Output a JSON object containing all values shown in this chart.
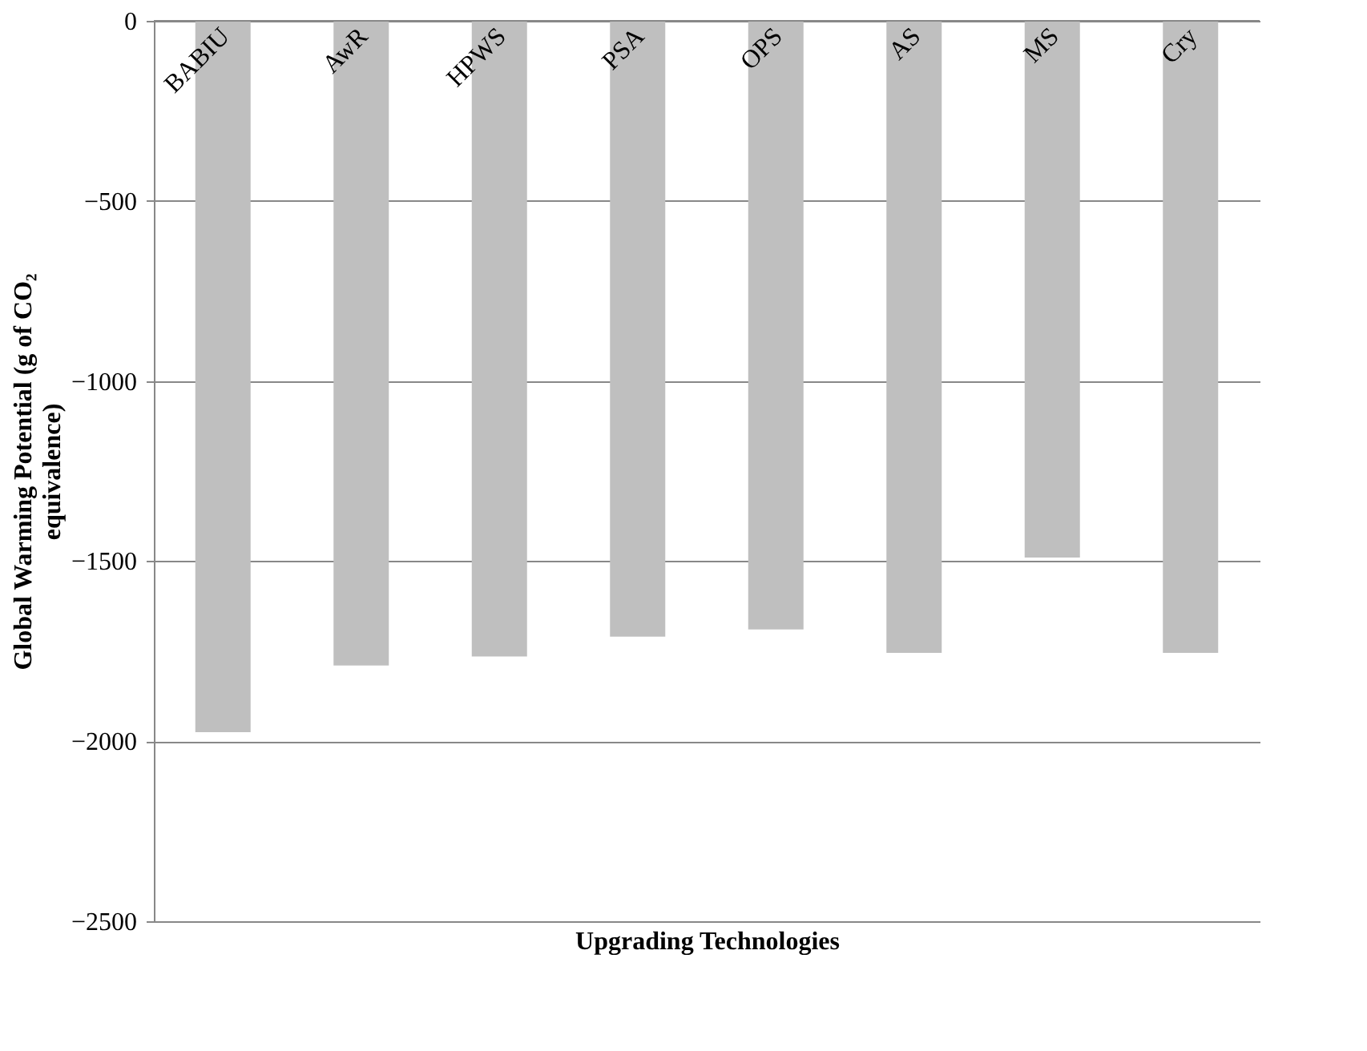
{
  "chart_data": {
    "type": "bar",
    "xlabel": "Upgrading Technologies",
    "ylabel": "Global Warming Potential (g of CO₂ equivalence)",
    "categories": [
      "BABIU",
      "AwR",
      "HPWS",
      "PSA",
      "OPS",
      "AS",
      "MS",
      "Cry"
    ],
    "values": [
      -1975,
      -1790,
      -1765,
      -1710,
      -1690,
      -1755,
      -1490,
      -1755
    ],
    "color": "#bfbfbf",
    "ylim": [
      -2500,
      0
    ],
    "yticks": [
      -2500,
      -2000,
      -1500,
      -1000,
      -500,
      0
    ],
    "grid": "y"
  }
}
